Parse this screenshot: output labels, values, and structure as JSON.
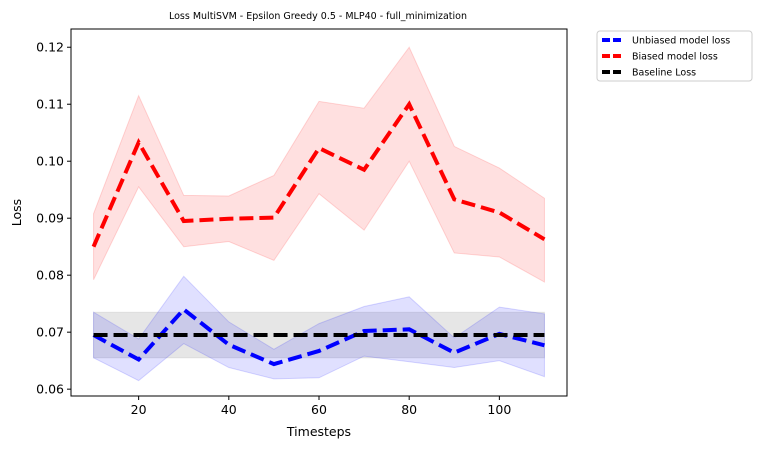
{
  "chart_data": {
    "type": "line",
    "title": "Loss MultiSVM - Epsilon Greedy 0.5 - MLP40 - full_minimization",
    "xlabel": "Timesteps",
    "ylabel": "Loss",
    "xlim": [
      5,
      115
    ],
    "ylim": [
      0.0588,
      0.1232
    ],
    "xticks": [
      20,
      40,
      60,
      80,
      100
    ],
    "yticks": [
      0.06,
      0.07,
      0.08,
      0.09,
      0.1,
      0.11,
      0.12
    ],
    "ytick_labels": [
      "0.06",
      "0.07",
      "0.08",
      "0.09",
      "0.10",
      "0.11",
      "0.12"
    ],
    "grid": false,
    "legend_position": "outside-top-right",
    "x": [
      10,
      20,
      30,
      40,
      50,
      60,
      70,
      80,
      90,
      100,
      110
    ],
    "series": [
      {
        "name": "Unbiased model loss",
        "color": "#0000ff",
        "values": [
          0.0695,
          0.0652,
          0.074,
          0.0678,
          0.0644,
          0.0667,
          0.0702,
          0.0705,
          0.0664,
          0.0697,
          0.0677
        ],
        "lower": [
          0.0655,
          0.0615,
          0.068,
          0.0638,
          0.0618,
          0.062,
          0.0658,
          0.0648,
          0.0638,
          0.065,
          0.0622
        ],
        "upper": [
          0.0735,
          0.0688,
          0.0798,
          0.0718,
          0.067,
          0.0715,
          0.0745,
          0.0762,
          0.069,
          0.0744,
          0.0732
        ]
      },
      {
        "name": "Biased model loss",
        "color": "#ff0000",
        "values": [
          0.085,
          0.1033,
          0.0895,
          0.0899,
          0.0901,
          0.1023,
          0.0985,
          0.11,
          0.0933,
          0.091,
          0.0863
        ],
        "lower": [
          0.0792,
          0.0955,
          0.085,
          0.0859,
          0.0826,
          0.0943,
          0.0879,
          0.1,
          0.0839,
          0.0832,
          0.0788
        ],
        "upper": [
          0.0908,
          0.1115,
          0.094,
          0.0939,
          0.0975,
          0.1105,
          0.1093,
          0.12,
          0.1026,
          0.0988,
          0.0935
        ]
      },
      {
        "name": "Baseline Loss",
        "color": "#000000",
        "values": [
          0.0695,
          0.0695,
          0.0695,
          0.0695,
          0.0695,
          0.0695,
          0.0695,
          0.0695,
          0.0695,
          0.0695,
          0.0695
        ],
        "lower": [
          0.0655,
          0.0655,
          0.0655,
          0.0655,
          0.0655,
          0.0655,
          0.0655,
          0.0655,
          0.0655,
          0.0655,
          0.0655
        ],
        "upper": [
          0.0735,
          0.0735,
          0.0735,
          0.0735,
          0.0735,
          0.0735,
          0.0735,
          0.0735,
          0.0735,
          0.0735,
          0.0735
        ]
      }
    ]
  }
}
